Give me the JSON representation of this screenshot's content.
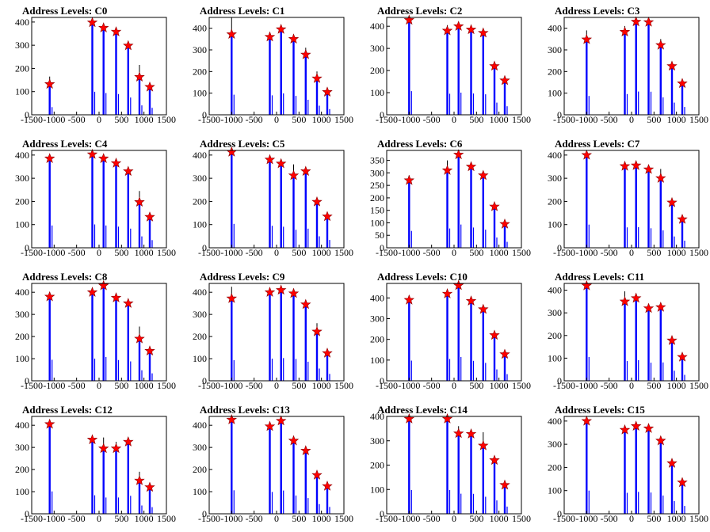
{
  "colors": {
    "peak_line": "#000000",
    "histogram": "#0000ff",
    "marker_fill": "#ff0000",
    "marker_stroke": "#8b0000",
    "axis": "#000000"
  },
  "chart_data": [
    {
      "type": "bar",
      "title": "Address Levels: C0",
      "xlim": [
        -1500,
        1500
      ],
      "ylim": [
        0,
        420
      ],
      "xticks": [
        "-1500",
        "-1000",
        "-500",
        "0",
        "500",
        "1000",
        "1500"
      ],
      "yticks": [
        "0",
        "100",
        "200",
        "300",
        "400"
      ],
      "peaks": [
        {
          "x": -1100,
          "peak": 165,
          "y": 132
        },
        {
          "x": -150,
          "peak": 415,
          "y": 398
        },
        {
          "x": 100,
          "peak": 380,
          "y": 375
        },
        {
          "x": 380,
          "peak": 370,
          "y": 358
        },
        {
          "x": 650,
          "peak": 310,
          "y": 298
        },
        {
          "x": 900,
          "peak": 215,
          "y": 163
        },
        {
          "x": 1130,
          "peak": 130,
          "y": 120
        }
      ]
    },
    {
      "type": "bar",
      "title": "Address Levels: C1",
      "xlim": [
        -1500,
        1500
      ],
      "ylim": [
        0,
        450
      ],
      "xticks": [
        "-1500",
        "-1000",
        "-500",
        "0",
        "500",
        "1000",
        "1500"
      ],
      "yticks": [
        "0",
        "100",
        "200",
        "300",
        "400"
      ],
      "peaks": [
        {
          "x": -1000,
          "peak": 450,
          "y": 372
        },
        {
          "x": -150,
          "peak": 380,
          "y": 360
        },
        {
          "x": 100,
          "peak": 410,
          "y": 395
        },
        {
          "x": 380,
          "peak": 355,
          "y": 350
        },
        {
          "x": 650,
          "peak": 310,
          "y": 278
        },
        {
          "x": 900,
          "peak": 200,
          "y": 168
        },
        {
          "x": 1130,
          "peak": 115,
          "y": 105
        }
      ]
    },
    {
      "type": "bar",
      "title": "Address Levels: C2",
      "xlim": [
        -1500,
        1500
      ],
      "ylim": [
        0,
        440
      ],
      "xticks": [
        "-1500",
        "-1000",
        "-500",
        "0",
        "500",
        "1000",
        "1500"
      ],
      "yticks": [
        "0",
        "100",
        "200",
        "300",
        "400"
      ],
      "peaks": [
        {
          "x": -1000,
          "peak": 440,
          "y": 428
        },
        {
          "x": -150,
          "peak": 405,
          "y": 380
        },
        {
          "x": 100,
          "peak": 410,
          "y": 400
        },
        {
          "x": 380,
          "peak": 395,
          "y": 385
        },
        {
          "x": 650,
          "peak": 385,
          "y": 370
        },
        {
          "x": 900,
          "peak": 240,
          "y": 220
        },
        {
          "x": 1130,
          "peak": 165,
          "y": 155
        }
      ]
    },
    {
      "type": "bar",
      "title": "Address Levels: C3",
      "xlim": [
        -1500,
        1500
      ],
      "ylim": [
        0,
        450
      ],
      "xticks": [
        "-1500",
        "-1000",
        "-500",
        "0",
        "500",
        "1000",
        "1500"
      ],
      "yticks": [
        "0",
        "100",
        "200",
        "300",
        "400"
      ],
      "peaks": [
        {
          "x": -1000,
          "peak": 390,
          "y": 348
        },
        {
          "x": -150,
          "peak": 410,
          "y": 383
        },
        {
          "x": 100,
          "peak": 440,
          "y": 430
        },
        {
          "x": 380,
          "peak": 435,
          "y": 428
        },
        {
          "x": 650,
          "peak": 350,
          "y": 322
        },
        {
          "x": 900,
          "peak": 240,
          "y": 225
        },
        {
          "x": 1130,
          "peak": 150,
          "y": 145
        }
      ]
    },
    {
      "type": "bar",
      "title": "Address Levels: C4",
      "xlim": [
        -1500,
        1500
      ],
      "ylim": [
        0,
        420
      ],
      "xticks": [
        "-1500",
        "-1000",
        "-500",
        "0",
        "500",
        "1000",
        "1500"
      ],
      "yticks": [
        "0",
        "100",
        "200",
        "300",
        "400"
      ],
      "peaks": [
        {
          "x": -1100,
          "peak": 395,
          "y": 385
        },
        {
          "x": -150,
          "peak": 415,
          "y": 403
        },
        {
          "x": 100,
          "peak": 400,
          "y": 385
        },
        {
          "x": 380,
          "peak": 375,
          "y": 365
        },
        {
          "x": 650,
          "peak": 340,
          "y": 330
        },
        {
          "x": 900,
          "peak": 245,
          "y": 197
        },
        {
          "x": 1130,
          "peak": 145,
          "y": 133
        }
      ]
    },
    {
      "type": "bar",
      "title": "Address Levels: C5",
      "xlim": [
        -1500,
        1500
      ],
      "ylim": [
        0,
        420
      ],
      "xticks": [
        "-1500",
        "-1000",
        "-500",
        "0",
        "500",
        "1000",
        "1500"
      ],
      "yticks": [
        "0",
        "100",
        "200",
        "300",
        "400"
      ],
      "peaks": [
        {
          "x": -1000,
          "peak": 425,
          "y": 413
        },
        {
          "x": -150,
          "peak": 390,
          "y": 380
        },
        {
          "x": 100,
          "peak": 370,
          "y": 363
        },
        {
          "x": 380,
          "peak": 360,
          "y": 312
        },
        {
          "x": 650,
          "peak": 340,
          "y": 330
        },
        {
          "x": 900,
          "peak": 210,
          "y": 198
        },
        {
          "x": 1130,
          "peak": 145,
          "y": 135
        }
      ]
    },
    {
      "type": "bar",
      "title": "Address Levels: C6",
      "xlim": [
        -1500,
        1500
      ],
      "ylim": [
        0,
        390
      ],
      "xticks": [
        "-1500",
        "-1000",
        "-500",
        "0",
        "500",
        "1000",
        "1500"
      ],
      "yticks": [
        "0",
        "50",
        "100",
        "150",
        "200",
        "250",
        "300",
        "350"
      ],
      "peaks": [
        {
          "x": -1000,
          "peak": 290,
          "y": 270
        },
        {
          "x": -150,
          "peak": 350,
          "y": 310
        },
        {
          "x": 100,
          "peak": 390,
          "y": 373
        },
        {
          "x": 380,
          "peak": 340,
          "y": 325
        },
        {
          "x": 650,
          "peak": 300,
          "y": 290
        },
        {
          "x": 900,
          "peak": 180,
          "y": 165
        },
        {
          "x": 1130,
          "peak": 100,
          "y": 95
        }
      ]
    },
    {
      "type": "bar",
      "title": "Address Levels: C7",
      "xlim": [
        -1500,
        1500
      ],
      "ylim": [
        0,
        420
      ],
      "xticks": [
        "-1500",
        "-1000",
        "-500",
        "0",
        "500",
        "1000",
        "1500"
      ],
      "yticks": [
        "0",
        "100",
        "200",
        "300",
        "400"
      ],
      "peaks": [
        {
          "x": -1000,
          "peak": 410,
          "y": 400
        },
        {
          "x": -150,
          "peak": 370,
          "y": 352
        },
        {
          "x": 100,
          "peak": 365,
          "y": 355
        },
        {
          "x": 380,
          "peak": 350,
          "y": 338
        },
        {
          "x": 650,
          "peak": 340,
          "y": 300
        },
        {
          "x": 900,
          "peak": 210,
          "y": 195
        },
        {
          "x": 1130,
          "peak": 130,
          "y": 123
        }
      ]
    },
    {
      "type": "bar",
      "title": "Address Levels: C8",
      "xlim": [
        -1500,
        1500
      ],
      "ylim": [
        0,
        440
      ],
      "xticks": [
        "-1500",
        "-1000",
        "-500",
        "0",
        "500",
        "1000",
        "1500"
      ],
      "yticks": [
        "0",
        "100",
        "200",
        "300",
        "400"
      ],
      "peaks": [
        {
          "x": -1100,
          "peak": 390,
          "y": 380
        },
        {
          "x": -150,
          "peak": 420,
          "y": 400
        },
        {
          "x": 100,
          "peak": 440,
          "y": 430
        },
        {
          "x": 380,
          "peak": 385,
          "y": 375
        },
        {
          "x": 650,
          "peak": 360,
          "y": 350
        },
        {
          "x": 900,
          "peak": 245,
          "y": 190
        },
        {
          "x": 1130,
          "peak": 150,
          "y": 135
        }
      ]
    },
    {
      "type": "bar",
      "title": "Address Levels: C9",
      "xlim": [
        -1500,
        1500
      ],
      "ylim": [
        0,
        440
      ],
      "xticks": [
        "-1500",
        "-1000",
        "-500",
        "0",
        "500",
        "1000",
        "1500"
      ],
      "yticks": [
        "0",
        "100",
        "200",
        "300",
        "400"
      ],
      "peaks": [
        {
          "x": -1000,
          "peak": 425,
          "y": 372
        },
        {
          "x": -150,
          "peak": 410,
          "y": 400
        },
        {
          "x": 100,
          "peak": 420,
          "y": 410
        },
        {
          "x": 380,
          "peak": 405,
          "y": 395
        },
        {
          "x": 650,
          "peak": 355,
          "y": 345
        },
        {
          "x": 900,
          "peak": 260,
          "y": 222
        },
        {
          "x": 1130,
          "peak": 145,
          "y": 125
        }
      ]
    },
    {
      "type": "bar",
      "title": "Address Levels: C10",
      "xlim": [
        -1500,
        1500
      ],
      "ylim": [
        0,
        470
      ],
      "xticks": [
        "-1500",
        "-1000",
        "-500",
        "0",
        "500",
        "1000",
        "1500"
      ],
      "yticks": [
        "0",
        "100",
        "200",
        "300",
        "400"
      ],
      "peaks": [
        {
          "x": -1000,
          "peak": 400,
          "y": 390
        },
        {
          "x": -150,
          "peak": 430,
          "y": 420
        },
        {
          "x": 100,
          "peak": 470,
          "y": 460
        },
        {
          "x": 380,
          "peak": 395,
          "y": 385
        },
        {
          "x": 650,
          "peak": 355,
          "y": 345
        },
        {
          "x": 900,
          "peak": 230,
          "y": 220
        },
        {
          "x": 1130,
          "peak": 140,
          "y": 128
        }
      ]
    },
    {
      "type": "bar",
      "title": "Address Levels: C11",
      "xlim": [
        -1500,
        1500
      ],
      "ylim": [
        0,
        430
      ],
      "xticks": [
        "-1500",
        "-1000",
        "-500",
        "0",
        "500",
        "1000",
        "1500"
      ],
      "yticks": [
        "0",
        "100",
        "200",
        "300",
        "400"
      ],
      "peaks": [
        {
          "x": -1000,
          "peak": 430,
          "y": 420
        },
        {
          "x": -150,
          "peak": 395,
          "y": 350
        },
        {
          "x": 100,
          "peak": 375,
          "y": 365
        },
        {
          "x": 380,
          "peak": 330,
          "y": 320
        },
        {
          "x": 650,
          "peak": 330,
          "y": 325
        },
        {
          "x": 900,
          "peak": 185,
          "y": 178
        },
        {
          "x": 1130,
          "peak": 115,
          "y": 105
        }
      ]
    },
    {
      "type": "bar",
      "title": "Address Levels: C12",
      "xlim": [
        -1500,
        1500
      ],
      "ylim": [
        0,
        440
      ],
      "xticks": [
        "-1500",
        "-1000",
        "-500",
        "0",
        "500",
        "1000",
        "1500"
      ],
      "yticks": [
        "0",
        "100",
        "200",
        "300",
        "400"
      ],
      "peaks": [
        {
          "x": -1100,
          "peak": 415,
          "y": 405
        },
        {
          "x": -150,
          "peak": 355,
          "y": 335
        },
        {
          "x": 100,
          "peak": 345,
          "y": 295
        },
        {
          "x": 380,
          "peak": 325,
          "y": 295
        },
        {
          "x": 650,
          "peak": 335,
          "y": 325
        },
        {
          "x": 900,
          "peak": 190,
          "y": 150
        },
        {
          "x": 1130,
          "peak": 130,
          "y": 120
        }
      ]
    },
    {
      "type": "bar",
      "title": "Address Levels: C13",
      "xlim": [
        -1500,
        1500
      ],
      "ylim": [
        0,
        440
      ],
      "xticks": [
        "-1500",
        "-1000",
        "-500",
        "0",
        "500",
        "1000",
        "1500"
      ],
      "yticks": [
        "0",
        "100",
        "200",
        "300",
        "400"
      ],
      "peaks": [
        {
          "x": -1000,
          "peak": 440,
          "y": 425
        },
        {
          "x": -150,
          "peak": 410,
          "y": 395
        },
        {
          "x": 100,
          "peak": 435,
          "y": 420
        },
        {
          "x": 380,
          "peak": 340,
          "y": 330
        },
        {
          "x": 650,
          "peak": 295,
          "y": 285
        },
        {
          "x": 900,
          "peak": 185,
          "y": 175
        },
        {
          "x": 1130,
          "peak": 135,
          "y": 125
        }
      ]
    },
    {
      "type": "bar",
      "title": "Address Levels: C14",
      "xlim": [
        -1500,
        1500
      ],
      "ylim": [
        0,
        400
      ],
      "xticks": [
        "-1500",
        "-1000",
        "-500",
        "0",
        "500",
        "1000",
        "1500"
      ],
      "yticks": [
        "0",
        "100",
        "200",
        "300",
        "400"
      ],
      "peaks": [
        {
          "x": -1000,
          "peak": 400,
          "y": 390
        },
        {
          "x": -150,
          "peak": 400,
          "y": 390
        },
        {
          "x": 100,
          "peak": 360,
          "y": 330
        },
        {
          "x": 380,
          "peak": 340,
          "y": 328
        },
        {
          "x": 650,
          "peak": 335,
          "y": 280
        },
        {
          "x": 900,
          "peak": 230,
          "y": 220
        },
        {
          "x": 1130,
          "peak": 130,
          "y": 118
        }
      ]
    },
    {
      "type": "bar",
      "title": "Address Levels: C15",
      "xlim": [
        -1500,
        1500
      ],
      "ylim": [
        0,
        420
      ],
      "xticks": [
        "-1500",
        "-1000",
        "-500",
        "0",
        "500",
        "1000",
        "1500"
      ],
      "yticks": [
        "0",
        "100",
        "200",
        "300",
        "400"
      ],
      "peaks": [
        {
          "x": -1000,
          "peak": 410,
          "y": 400
        },
        {
          "x": -150,
          "peak": 375,
          "y": 362
        },
        {
          "x": 100,
          "peak": 390,
          "y": 378
        },
        {
          "x": 380,
          "peak": 380,
          "y": 368
        },
        {
          "x": 650,
          "peak": 320,
          "y": 315
        },
        {
          "x": 900,
          "peak": 225,
          "y": 218
        },
        {
          "x": 1130,
          "peak": 145,
          "y": 135
        }
      ]
    }
  ]
}
